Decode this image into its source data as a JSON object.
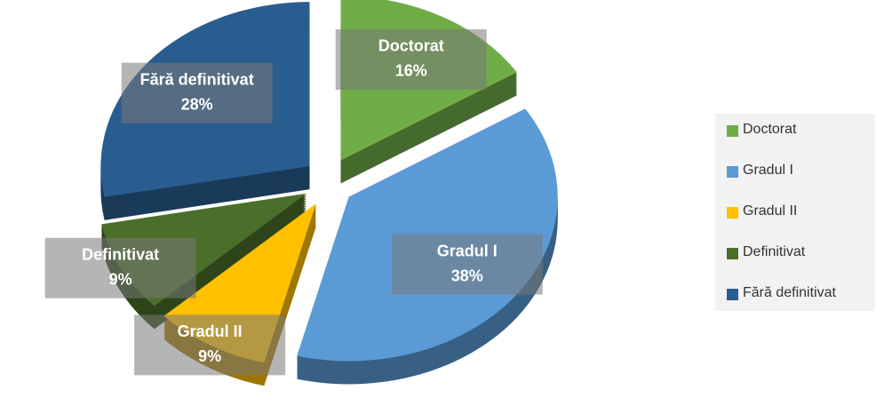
{
  "chart_data": {
    "type": "pie",
    "categories": [
      "Doctorat",
      "Gradul I",
      "Gradul II",
      "Definitivat",
      "Fără definitivat"
    ],
    "values": [
      16,
      38,
      9,
      9,
      28
    ],
    "value_labels": [
      "16%",
      "38%",
      "9%",
      "9%",
      "28%"
    ],
    "colors": [
      "#70ad47",
      "#5b9bd5",
      "#ffc000",
      "#4a6f2a",
      "#2a5d8f"
    ],
    "legend": "right"
  }
}
